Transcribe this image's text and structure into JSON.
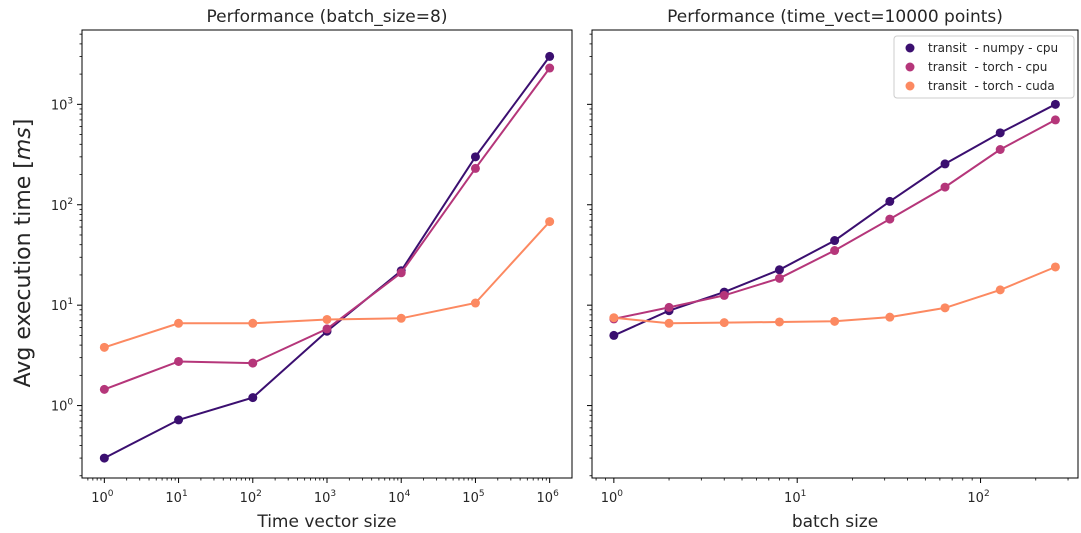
{
  "figure": {
    "ylabel": "Avg execution time [$ms$]",
    "legend": {
      "placement": "top-right",
      "entries": [
        "transit  - numpy - cpu",
        "transit  - torch - cpu",
        "transit  - torch - cuda"
      ]
    }
  },
  "colors": {
    "numpy_cpu": "#3b0f70",
    "torch_cpu": "#b5367a",
    "torch_cuda": "#fc8961",
    "axis": "#000000",
    "text": "#262626"
  },
  "chart_data": [
    {
      "type": "line",
      "title": "Performance (batch_size=8)",
      "xlabel": "Time vector size",
      "ylabel": "Avg execution time [$ms$]",
      "xscale": "log",
      "yscale": "log",
      "xlim": [
        0.5,
        2000000
      ],
      "ylim": [
        0.19,
        5500
      ],
      "grid": false,
      "x": [
        1,
        10,
        100,
        1000,
        10000,
        100000,
        1000000
      ],
      "xticks": [
        1,
        10,
        100,
        1000,
        10000,
        100000,
        1000000
      ],
      "yticks": [
        1,
        10,
        100,
        1000
      ],
      "series": [
        {
          "name": "transit  - numpy - cpu",
          "color": "#3b0f70",
          "values": [
            0.3,
            0.72,
            1.2,
            5.5,
            22,
            300,
            3000
          ]
        },
        {
          "name": "transit  - torch - cpu",
          "color": "#b5367a",
          "values": [
            1.45,
            2.75,
            2.65,
            5.8,
            21,
            230,
            2300
          ]
        },
        {
          "name": "transit  - torch - cuda",
          "color": "#fc8961",
          "values": [
            3.8,
            6.6,
            6.6,
            7.2,
            7.4,
            10.5,
            68
          ]
        }
      ]
    },
    {
      "type": "line",
      "title": "Performance (time_vect=10000 points)",
      "xlabel": "batch size",
      "xscale": "log",
      "yscale": "log",
      "xlim": [
        0.76,
        340
      ],
      "ylim": [
        0.19,
        5500
      ],
      "grid": false,
      "x": [
        1,
        2,
        4,
        8,
        16,
        32,
        64,
        128,
        256
      ],
      "xticks": [
        1,
        10,
        100
      ],
      "yticks": [
        1,
        10,
        100,
        1000
      ],
      "series": [
        {
          "name": "transit  - numpy - cpu",
          "color": "#3b0f70",
          "values": [
            5.0,
            8.8,
            13.5,
            22.5,
            44,
            108,
            255,
            520,
            1000
          ]
        },
        {
          "name": "transit  - torch - cpu",
          "color": "#b5367a",
          "values": [
            7.3,
            9.5,
            12.5,
            18.5,
            35,
            72,
            150,
            355,
            700
          ]
        },
        {
          "name": "transit  - torch - cuda",
          "color": "#fc8961",
          "values": [
            7.5,
            6.6,
            6.7,
            6.8,
            6.9,
            7.6,
            9.4,
            14.2,
            24
          ]
        }
      ]
    }
  ]
}
